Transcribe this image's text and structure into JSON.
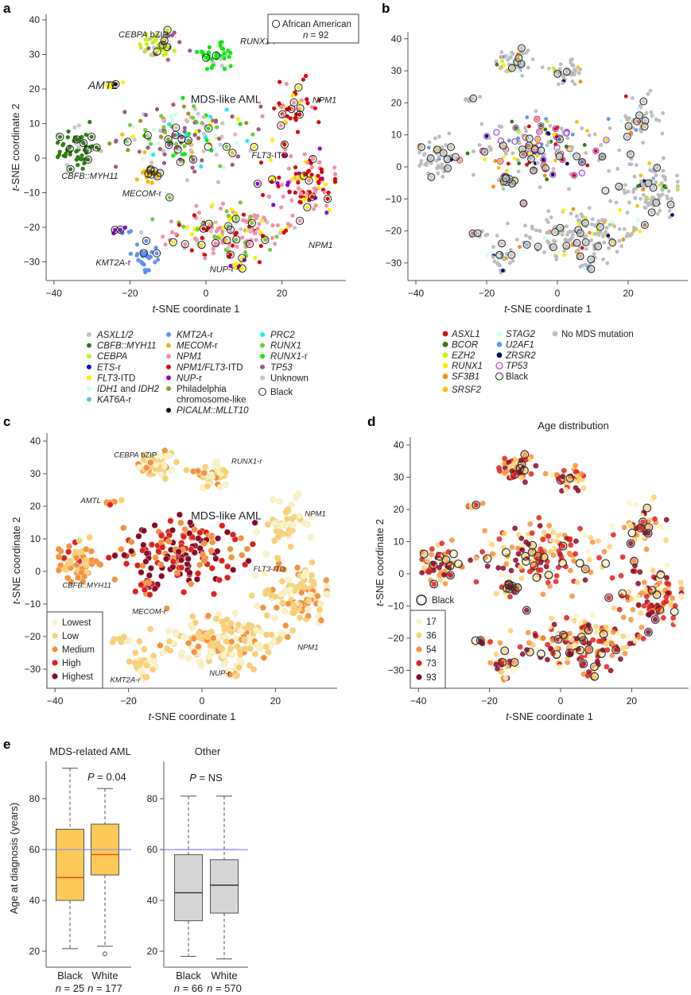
{
  "figure": {
    "panels": [
      "a",
      "b",
      "c",
      "d",
      "e"
    ]
  },
  "chart_data": [
    {
      "id": "a",
      "type": "scatter",
      "title": "",
      "xlabel": "t-SNE coordinate 1",
      "ylabel": "t-SNE coordinate 2",
      "xlim": [
        -42,
        36
      ],
      "ylim": [
        -35,
        42
      ],
      "xticks": [
        -40,
        -20,
        0,
        20
      ],
      "yticks": [
        -30,
        -20,
        -10,
        0,
        10,
        20,
        30,
        40
      ],
      "inset_legend": {
        "symbol": "open-circle",
        "label": "African American",
        "n_label": "n = 92",
        "position": "top-right"
      },
      "annotations": [
        {
          "text": "CEBPA bZIP",
          "x": -23,
          "y": 35
        },
        {
          "text": "RUNX1-r",
          "x": 9,
          "y": 33
        },
        {
          "text": "AMTL",
          "x": -31,
          "y": 20
        },
        {
          "text": "MDS-like AML",
          "x": -4,
          "y": 16
        },
        {
          "text": "NPM1",
          "x": 28,
          "y": 16
        },
        {
          "text": "FLT3-ITD",
          "x": 12,
          "y": 0
        },
        {
          "text": "CBFB::MYH11",
          "x": -38,
          "y": -6
        },
        {
          "text": "MECOM-r",
          "x": -22,
          "y": -11
        },
        {
          "text": "KMT2A-r",
          "x": -29,
          "y": -31
        },
        {
          "text": "NUP-r",
          "x": 1,
          "y": -33
        },
        {
          "text": "NPM1",
          "x": 27,
          "y": -26
        }
      ],
      "legend": [
        {
          "label": "ASXL1/2",
          "color": "#d4bcb4",
          "italic": true
        },
        {
          "label": "CBFB::MYH11",
          "color": "#2e7d14",
          "italic": true
        },
        {
          "label": "CEBPA",
          "color": "#c8f018",
          "italic": true
        },
        {
          "label": "ETS-r",
          "color": "#0010c8",
          "italic": true
        },
        {
          "label": "FLT3-ITD",
          "color": "#f8f000",
          "italic": true
        },
        {
          "label": "IDH1 and IDH2",
          "color": "#d0fce8",
          "italic": true
        },
        {
          "label": "KAT6A-r",
          "color": "#58c8d8",
          "italic": true
        },
        {
          "label": "KMT2A-r",
          "color": "#6090f0",
          "italic": true
        },
        {
          "label": "MECOM-r",
          "color": "#f8b800",
          "italic": true
        },
        {
          "label": "NPM1",
          "color": "#f090a8",
          "italic": true
        },
        {
          "label": "NPM1/FLT3-ITD",
          "color": "#d80808",
          "italic": true
        },
        {
          "label": "NUP-r",
          "color": "#9000d0",
          "italic": true
        },
        {
          "label": "Philadelphia chromosome-like",
          "color": "#9c9428",
          "italic": false
        },
        {
          "label": "PICALM::MLLT10",
          "color": "#000000",
          "italic": true
        },
        {
          "label": "PRC2",
          "color": "#10f0f8",
          "italic": true
        },
        {
          "label": "RUNX1",
          "color": "#78c840",
          "italic": true
        },
        {
          "label": "RUNX1-r",
          "color": "#10e810",
          "italic": true
        },
        {
          "label": "TP53",
          "color": "#9c5888",
          "italic": true
        },
        {
          "label": "Unknown",
          "color": "#c8c8c8",
          "italic": false
        },
        {
          "label": "Black",
          "color": "open-circle",
          "italic": false
        }
      ],
      "clusters": [
        {
          "name": "CEBPA",
          "cx": -12,
          "cy": 33,
          "sx": 2.8,
          "sy": 2.6,
          "n": 55,
          "palette": [
            "CEBPA",
            "CEBPA",
            "CEBPA",
            "CEBPA",
            "ASXL1/2",
            "Unknown",
            "TP53"
          ]
        },
        {
          "name": "RUNX1-r",
          "cx": 3,
          "cy": 30,
          "sx": 2.5,
          "sy": 2.4,
          "n": 40,
          "palette": [
            "RUNX1-r",
            "RUNX1-r",
            "RUNX1-r",
            "RUNX1-r",
            "Unknown"
          ]
        },
        {
          "name": "AMTL",
          "cx": -24,
          "cy": 21,
          "sx": 1.3,
          "sy": 0.7,
          "n": 8,
          "palette": [
            "FLT3-ITD",
            "FLT3-ITD",
            "PICALM::MLLT10"
          ]
        },
        {
          "name": "CBFB",
          "cx": -34,
          "cy": 3,
          "sx": 2.5,
          "sy": 3.2,
          "n": 60,
          "palette": [
            "CBFB::MYH11",
            "CBFB::MYH11",
            "CBFB::MYH11",
            "CBFB::MYH11",
            "Unknown"
          ]
        },
        {
          "name": "MDS",
          "cx": -5,
          "cy": 6,
          "sx": 9,
          "sy": 4.5,
          "n": 170,
          "palette": [
            "RUNX1",
            "TP53",
            "TP53",
            "ASXL1/2",
            "Unknown",
            "PRC2",
            "IDH1 and IDH2",
            "FLT3-ITD",
            "Philadelphia chromosome-like",
            "RUNX1-r",
            "MECOM-r"
          ]
        },
        {
          "name": "MECOM",
          "cx": -15,
          "cy": -5,
          "sx": 1.6,
          "sy": 1.4,
          "n": 22,
          "palette": [
            "MECOM-r",
            "MECOM-r",
            "MECOM-r",
            "Unknown"
          ]
        },
        {
          "name": "NPM1-top",
          "cx": 23,
          "cy": 14,
          "sx": 3.5,
          "sy": 4,
          "n": 45,
          "palette": [
            "NPM1",
            "NPM1",
            "NPM1/FLT3-ITD",
            "NPM1/FLT3-ITD",
            "FLT3-ITD"
          ]
        },
        {
          "name": "FLT3",
          "cx": 26,
          "cy": -6,
          "sx": 4.5,
          "sy": 4.8,
          "n": 110,
          "palette": [
            "NPM1/FLT3-ITD",
            "NPM1/FLT3-ITD",
            "NPM1",
            "NPM1",
            "FLT3-ITD",
            "NUP-r"
          ]
        },
        {
          "name": "NPM1-bottom",
          "cx": 7,
          "cy": -21,
          "sx": 9,
          "sy": 3.4,
          "n": 170,
          "palette": [
            "NPM1",
            "NPM1",
            "NPM1",
            "NPM1/FLT3-ITD",
            "FLT3-ITD",
            "Unknown",
            "RUNX1"
          ]
        },
        {
          "name": "KMT2A",
          "cx": -16,
          "cy": -29,
          "sx": 1.7,
          "sy": 2.2,
          "n": 30,
          "palette": [
            "KMT2A-r"
          ]
        },
        {
          "name": "KMT2A-2",
          "cx": -22,
          "cy": -21,
          "sx": 1.5,
          "sy": 0.8,
          "n": 8,
          "palette": [
            "KMT2A-r",
            "NUP-r"
          ]
        },
        {
          "name": "NUP",
          "cx": 8.5,
          "cy": -31,
          "sx": 1,
          "sy": 1.2,
          "n": 12,
          "palette": [
            "NUP-r",
            "NUP-r",
            "FLT3-ITD"
          ]
        }
      ],
      "black_patients_n": 92
    },
    {
      "id": "b",
      "type": "scatter",
      "xlabel": "t-SNE coordinate 1",
      "ylabel": "",
      "xlim": [
        -42,
        36
      ],
      "ylim": [
        -35,
        42
      ],
      "xticks": [
        -40,
        -20,
        0,
        20
      ],
      "yticks": [
        -30,
        -20,
        -10,
        0,
        10,
        20,
        30,
        40
      ],
      "legend": [
        {
          "label": "ASXL1",
          "color": "#d01010",
          "italic": true
        },
        {
          "label": "BCOR",
          "color": "#2e7d14",
          "italic": true
        },
        {
          "label": "EZH2",
          "color": "#c8f018",
          "italic": true
        },
        {
          "label": "RUNX1",
          "color": "#f8f000",
          "italic": true
        },
        {
          "label": "SF3B1",
          "color": "#f88c18",
          "italic": true
        },
        {
          "label": "SRSF2",
          "color": "#f8c010",
          "italic": true
        },
        {
          "label": "STAG2",
          "color": "#d0fcfc",
          "italic": true
        },
        {
          "label": "U2AF1",
          "color": "#6098f0",
          "italic": true
        },
        {
          "label": "ZRSR2",
          "color": "#001070",
          "italic": true
        },
        {
          "label": "TP53",
          "color": "open-purple",
          "italic": true
        },
        {
          "label": "Black",
          "color": "open-circle",
          "italic": false
        },
        {
          "label": "No MDS mutation",
          "color": "#bdbdbd",
          "italic": false
        }
      ]
    },
    {
      "id": "c",
      "type": "scatter",
      "xlabel": "t-SNE coordinate 1",
      "ylabel": "t-SNE coordinate 2",
      "xlim": [
        -42,
        36
      ],
      "ylim": [
        -35,
        42
      ],
      "xticks": [
        -40,
        -20,
        0,
        20
      ],
      "yticks": [
        -30,
        -20,
        -10,
        0,
        10,
        20,
        30,
        40
      ],
      "annotations": [
        {
          "text": "CEBPA bZIP",
          "x": -24,
          "y": 35,
          "color": "#222"
        },
        {
          "text": "RUNX1-r",
          "x": 8,
          "y": 33,
          "color": "#222"
        },
        {
          "text": "AMTL",
          "x": -33,
          "y": 21,
          "color": "#222"
        },
        {
          "text": "MDS-like AML",
          "x": -3,
          "y": 16,
          "color": "#e8202a"
        },
        {
          "text": "NPM1",
          "x": 28,
          "y": 17,
          "color": "#222"
        },
        {
          "text": "FLT3-ITD",
          "x": 14,
          "y": 0,
          "color": "#222"
        },
        {
          "text": "CBFB::MYH11",
          "x": -38,
          "y": -5,
          "color": "#222"
        },
        {
          "text": "MECOM-r",
          "x": -19,
          "y": -13,
          "color": "#222"
        },
        {
          "text": "NPM1",
          "x": 26,
          "y": -24,
          "color": "#222"
        },
        {
          "text": "NUP-r",
          "x": 2,
          "y": -32,
          "color": "#222"
        },
        {
          "text": "KMT2A-r",
          "x": -25,
          "y": -34,
          "color": "#222"
        }
      ],
      "legend": [
        {
          "label": "Lowest",
          "color": "#fcf4c0"
        },
        {
          "label": "Low",
          "color": "#fcd070"
        },
        {
          "label": "Medium",
          "color": "#f8903c"
        },
        {
          "label": "High",
          "color": "#e02020"
        },
        {
          "label": "Highest",
          "color": "#8a0828"
        }
      ],
      "legend_position": "bottom-left"
    },
    {
      "id": "d",
      "type": "scatter",
      "title": "Age distribution",
      "xlabel": "t-SNE coordinate 1",
      "ylabel": "t-SNE coordinate 2",
      "xlim": [
        -42,
        36
      ],
      "ylim": [
        -35,
        42
      ],
      "xticks": [
        -40,
        -20,
        0,
        20
      ],
      "yticks": [
        -30,
        -20,
        -10,
        0,
        10,
        20,
        30,
        40
      ],
      "legend_black": "Black",
      "legend": [
        {
          "label": "17",
          "color": "#fcf4c0"
        },
        {
          "label": "36",
          "color": "#fcd070"
        },
        {
          "label": "54",
          "color": "#f8903c"
        },
        {
          "label": "73",
          "color": "#e02020"
        },
        {
          "label": "93",
          "color": "#8a0828"
        }
      ],
      "legend_position": "bottom-left"
    },
    {
      "id": "e",
      "type": "box",
      "ylabel": "Age at diagnosis (years)",
      "ylim": [
        14,
        96
      ],
      "yticks": [
        20,
        40,
        60,
        80
      ],
      "reference_line": 60,
      "reference_color": "#8c8cf8",
      "groups": [
        {
          "title": "MDS-related AML",
          "p_label": "P = 0.04",
          "fill": "#fcc858",
          "median_color": "#e84010",
          "boxes": [
            {
              "label": "Black",
              "n_label": "n = 25",
              "whisker_low": 21,
              "q1": 40,
              "median": 49,
              "q3": 68,
              "whisker_high": 92,
              "outliers": []
            },
            {
              "label": "White",
              "n_label": "n = 177",
              "whisker_low": 22,
              "q1": 50,
              "median": 58,
              "q3": 70,
              "whisker_high": 84,
              "outliers": [
                19
              ]
            }
          ]
        },
        {
          "title": "Other",
          "p_label": "P = NS",
          "fill": "#d6d6d6",
          "median_color": "#222222",
          "boxes": [
            {
              "label": "Black",
              "n_label": "n = 66",
              "whisker_low": 18,
              "q1": 32,
              "median": 43,
              "q3": 58,
              "whisker_high": 81,
              "outliers": []
            },
            {
              "label": "White",
              "n_label": "n = 570",
              "whisker_low": 17,
              "q1": 35,
              "median": 46,
              "q3": 56,
              "whisker_high": 81,
              "outliers": []
            }
          ]
        }
      ]
    }
  ]
}
